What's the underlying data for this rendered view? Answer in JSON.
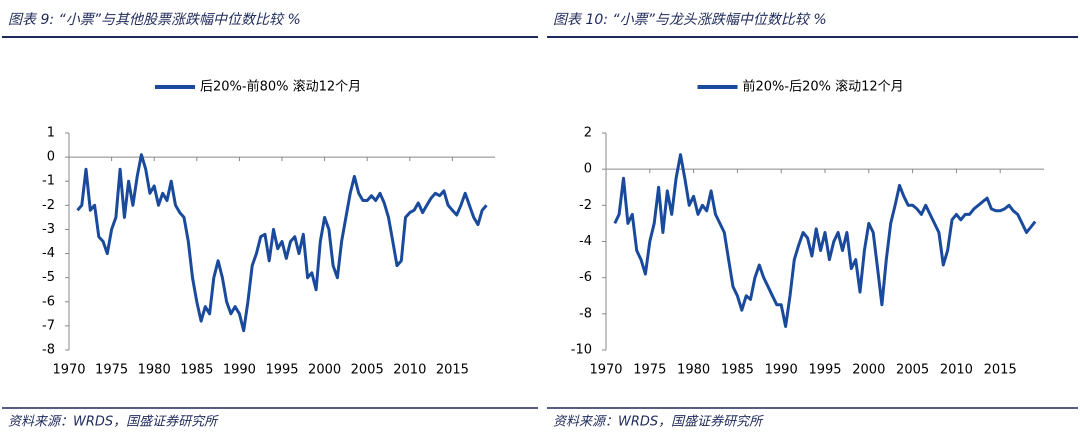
{
  "chart_data": [
    {
      "type": "line",
      "title": "图表 9: “小票”与其他股票涨跌幅中位数比较 %",
      "source": "资料来源：WRDS，国盛证券研究所",
      "xlim": [
        1970,
        2020
      ],
      "xticks": [
        1970,
        1975,
        1980,
        1985,
        1990,
        1995,
        2000,
        2005,
        2010,
        2015
      ],
      "ylim": [
        -8,
        1
      ],
      "yticks": [
        -8,
        -7,
        -6,
        -5,
        -4,
        -3,
        -2,
        -1,
        0,
        1
      ],
      "x": [
        1971,
        1971.5,
        1972,
        1972.5,
        1973,
        1973.5,
        1974,
        1974.5,
        1975,
        1975.5,
        1976,
        1976.5,
        1977,
        1977.5,
        1978,
        1978.5,
        1979,
        1979.5,
        1980,
        1980.5,
        1981,
        1981.5,
        1982,
        1982.5,
        1983,
        1983.5,
        1984,
        1984.5,
        1985,
        1985.5,
        1986,
        1986.5,
        1987,
        1987.5,
        1988,
        1988.5,
        1989,
        1989.5,
        1990,
        1990.5,
        1991,
        1991.5,
        1992,
        1992.5,
        1993,
        1993.5,
        1994,
        1994.5,
        1995,
        1995.5,
        1996,
        1996.5,
        1997,
        1997.5,
        1998,
        1998.5,
        1999,
        1999.5,
        2000,
        2000.5,
        2001,
        2001.5,
        2002,
        2002.5,
        2003,
        2003.5,
        2004,
        2004.5,
        2005,
        2005.5,
        2006,
        2006.5,
        2007,
        2007.5,
        2008,
        2008.5,
        2009,
        2009.5,
        2010,
        2010.5,
        2011,
        2011.5,
        2012,
        2012.5,
        2013,
        2013.5,
        2014,
        2014.5,
        2015,
        2015.5,
        2016,
        2016.5,
        2017,
        2017.5,
        2018,
        2018.5,
        2019
      ],
      "series": [
        {
          "name": "后20%-前80% 滚动12个月",
          "color": "#1a4a9c",
          "values": [
            -2.2,
            -2.0,
            -0.5,
            -2.2,
            -2.0,
            -3.3,
            -3.5,
            -4.0,
            -3.0,
            -2.5,
            -0.5,
            -2.5,
            -1.0,
            -2.0,
            -0.8,
            0.1,
            -0.5,
            -1.5,
            -1.2,
            -2.0,
            -1.5,
            -1.8,
            -1.0,
            -2.0,
            -2.3,
            -2.5,
            -3.5,
            -5.0,
            -6.0,
            -6.8,
            -6.2,
            -6.5,
            -5.0,
            -4.3,
            -5.0,
            -6.0,
            -6.5,
            -6.2,
            -6.5,
            -7.2,
            -6.0,
            -4.5,
            -4.0,
            -3.3,
            -3.2,
            -4.3,
            -3.0,
            -3.8,
            -3.5,
            -4.2,
            -3.5,
            -3.3,
            -4.0,
            -3.2,
            -5.0,
            -4.8,
            -5.5,
            -3.5,
            -2.5,
            -3.0,
            -4.5,
            -5.0,
            -3.5,
            -2.5,
            -1.5,
            -0.8,
            -1.5,
            -1.8,
            -1.8,
            -1.6,
            -1.8,
            -1.5,
            -1.9,
            -2.5,
            -3.5,
            -4.5,
            -4.3,
            -2.5,
            -2.3,
            -2.2,
            -1.9,
            -2.3,
            -2.0,
            -1.7,
            -1.5,
            -1.6,
            -1.4,
            -2.0,
            -2.2,
            -2.4,
            -2.0,
            -1.5,
            -2.0,
            -2.5,
            -2.8,
            -2.2,
            -2.0
          ]
        }
      ]
    },
    {
      "type": "line",
      "title": "图表 10: “小票”与龙头涨跌幅中位数比较 %",
      "source": "资料来源：WRDS，国盛证券研究所",
      "xlim": [
        1970,
        2020
      ],
      "xticks": [
        1970,
        1975,
        1980,
        1985,
        1990,
        1995,
        2000,
        2005,
        2010,
        2015
      ],
      "ylim": [
        -10,
        2
      ],
      "yticks": [
        -10,
        -8,
        -6,
        -4,
        -2,
        0,
        2
      ],
      "x": [
        1971,
        1971.5,
        1972,
        1972.5,
        1973,
        1973.5,
        1974,
        1974.5,
        1975,
        1975.5,
        1976,
        1976.5,
        1977,
        1977.5,
        1978,
        1978.5,
        1979,
        1979.5,
        1980,
        1980.5,
        1981,
        1981.5,
        1982,
        1982.5,
        1983,
        1983.5,
        1984,
        1984.5,
        1985,
        1985.5,
        1986,
        1986.5,
        1987,
        1987.5,
        1988,
        1988.5,
        1989,
        1989.5,
        1990,
        1990.5,
        1991,
        1991.5,
        1992,
        1992.5,
        1993,
        1993.5,
        1994,
        1994.5,
        1995,
        1995.5,
        1996,
        1996.5,
        1997,
        1997.5,
        1998,
        1998.5,
        1999,
        1999.5,
        2000,
        2000.5,
        2001,
        2001.5,
        2002,
        2002.5,
        2003,
        2003.5,
        2004,
        2004.5,
        2005,
        2005.5,
        2006,
        2006.5,
        2007,
        2007.5,
        2008,
        2008.5,
        2009,
        2009.5,
        2010,
        2010.5,
        2011,
        2011.5,
        2012,
        2012.5,
        2013,
        2013.5,
        2014,
        2014.5,
        2015,
        2015.5,
        2016,
        2016.5,
        2017,
        2017.5,
        2018,
        2018.5,
        2019
      ],
      "series": [
        {
          "name": "前20%-后20% 滚动12个月",
          "color": "#1a4a9c",
          "values": [
            -3.0,
            -2.5,
            -0.5,
            -3.0,
            -2.5,
            -4.5,
            -5.0,
            -5.8,
            -4.0,
            -3.0,
            -1.0,
            -3.5,
            -1.2,
            -2.5,
            -0.5,
            0.8,
            -0.5,
            -2.0,
            -1.5,
            -2.5,
            -2.0,
            -2.3,
            -1.2,
            -2.5,
            -3.0,
            -3.5,
            -5.0,
            -6.5,
            -7.0,
            -7.8,
            -7.0,
            -7.2,
            -6.0,
            -5.3,
            -6.0,
            -6.5,
            -7.0,
            -7.5,
            -7.5,
            -8.7,
            -7.0,
            -5.0,
            -4.2,
            -3.5,
            -3.8,
            -4.8,
            -3.3,
            -4.5,
            -3.5,
            -5.0,
            -4.0,
            -3.5,
            -4.5,
            -3.5,
            -5.5,
            -5.0,
            -6.8,
            -4.5,
            -3.0,
            -3.5,
            -5.5,
            -7.5,
            -5.0,
            -3.0,
            -2.0,
            -0.9,
            -1.5,
            -2.0,
            -2.0,
            -2.2,
            -2.5,
            -2.0,
            -2.5,
            -3.0,
            -3.5,
            -5.3,
            -4.5,
            -2.8,
            -2.5,
            -2.8,
            -2.5,
            -2.5,
            -2.2,
            -2.0,
            -1.8,
            -1.6,
            -2.2,
            -2.3,
            -2.3,
            -2.2,
            -2.0,
            -2.3,
            -2.5,
            -3.0,
            -3.5,
            -3.2,
            -2.9
          ]
        }
      ]
    }
  ]
}
